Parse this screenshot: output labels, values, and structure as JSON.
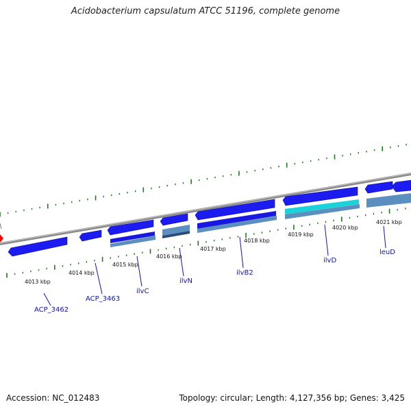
{
  "title": "Acidobacterium capsulatum ATCC 51196, complete genome",
  "footer": {
    "accession_label": "Accession:",
    "accession": "NC_012483",
    "topology_text": "Topology: circular; Length: 4,127,356 bp; Genes: 3,425"
  },
  "colors": {
    "backbone": "#8a8a8a",
    "forward_gene": "#1c1cf0",
    "reverse_gene": "#1818e0",
    "cds_light": "#5a8fbf",
    "highlight_gene": "#19d2da",
    "tick": "#1a7a1a",
    "label": "#1010b0",
    "kbp_label": "#111111",
    "marker": "#ff0000"
  },
  "kbp_ticks": [
    "4013 kbp",
    "4014 kbp",
    "4015 kbp",
    "4016 kbp",
    "4017 kbp",
    "4018 kbp",
    "4019 kbp",
    "4020 kbp",
    "4021 kbp"
  ],
  "genes": [
    "ACP_3462",
    "ACP_3463",
    "ilvC",
    "ilvN",
    "ilvB2",
    "ilvD",
    "leuD"
  ]
}
